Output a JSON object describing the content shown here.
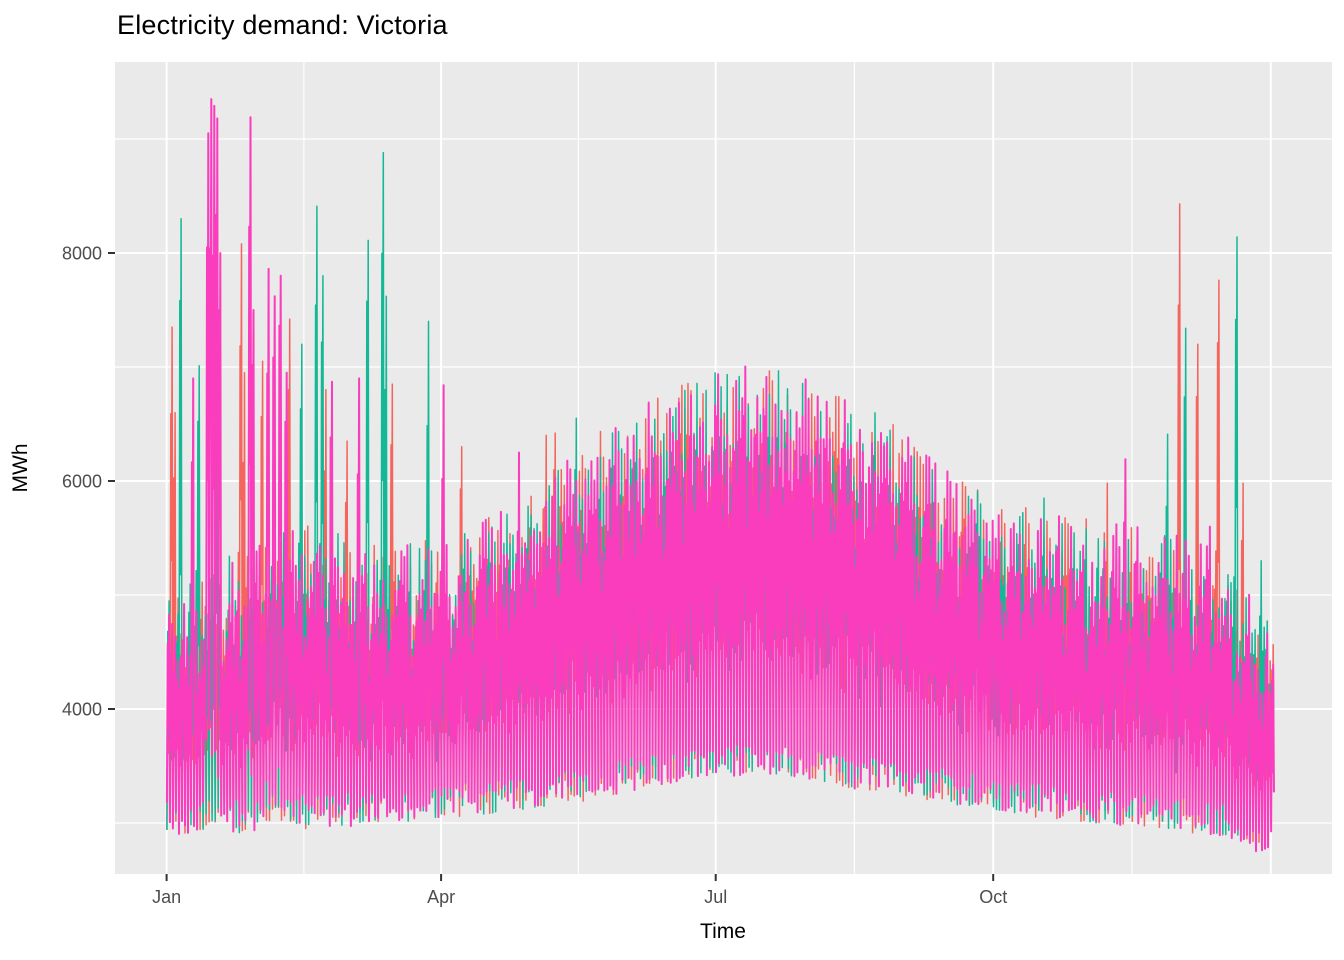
{
  "figure": {
    "title": "Electricity demand: Victoria"
  },
  "chart_data": {
    "type": "line",
    "title": "Electricity demand: Victoria",
    "xlabel": "Time",
    "ylabel": "MWh",
    "x_unit": "day-of-year (three years overlaid Jan–Dec)",
    "x_tick_labels": [
      "Jan",
      "Apr",
      "Jul",
      "Oct"
    ],
    "x_tick_days": [
      0,
      91,
      182,
      274
    ],
    "x_gridlines_major_days": [
      0,
      91,
      182,
      274,
      366
    ],
    "x_gridlines_minor_days": [
      45.5,
      136.5,
      228,
      320
    ],
    "y_tick_values": [
      4000,
      6000,
      8000
    ],
    "y_gridlines_minor": [
      3000,
      5000,
      7000,
      9000
    ],
    "x_domain_days": [
      -17.1,
      386.3
    ],
    "y_domain_mwh": [
      2553,
      9675
    ],
    "grid": true,
    "legend": "none",
    "panel_bg": "#EAEAEA",
    "gridline_color": "#FFFFFF",
    "tick_color": "#333333",
    "tick_label_color": "#4D4D4D",
    "axis_title_color": "#000000",
    "envelope": {
      "comment": "half-hourly demand summarized as daily night-low / day-high (MWh), linearly interpolated",
      "days": [
        0,
        10,
        21,
        32,
        46,
        60,
        75,
        91,
        105,
        121,
        135,
        152,
        166,
        182,
        196,
        213,
        227,
        244,
        258,
        274,
        288,
        305,
        319,
        335,
        349,
        356,
        361,
        366
      ],
      "night_low": [
        3050,
        3050,
        3050,
        3080,
        3100,
        3120,
        3150,
        3180,
        3220,
        3280,
        3320,
        3420,
        3500,
        3550,
        3580,
        3520,
        3450,
        3380,
        3330,
        3250,
        3200,
        3150,
        3120,
        3080,
        3030,
        2980,
        2900,
        2920
      ],
      "day_high": [
        4600,
        4900,
        5000,
        5150,
        5250,
        5150,
        5050,
        5150,
        5300,
        5600,
        5950,
        6250,
        6450,
        6600,
        6650,
        6500,
        6350,
        6050,
        5750,
        5500,
        5350,
        5300,
        5250,
        5150,
        5000,
        4750,
        4450,
        4500
      ]
    },
    "series": [
      {
        "name": "series-salmon",
        "color": "#F5655D",
        "weekly_offset": 0,
        "spikes": [
          [
            1,
            7350
          ],
          [
            2,
            6600
          ],
          [
            24,
            8080
          ],
          [
            25,
            6950
          ],
          [
            31,
            7050
          ],
          [
            40,
            7420
          ],
          [
            52,
            6800
          ],
          [
            59,
            6350
          ],
          [
            74,
            6850
          ],
          [
            97,
            6300
          ],
          [
            125,
            6400
          ],
          [
            128,
            6420
          ],
          [
            243,
            6360
          ],
          [
            253,
            6100
          ],
          [
            264,
            5950
          ],
          [
            311,
            5980
          ],
          [
            335,
            8430
          ],
          [
            341,
            7200
          ],
          [
            348,
            7760
          ],
          [
            356,
            5980
          ]
        ]
      },
      {
        "name": "series-teal",
        "color": "#14B897",
        "weekly_offset": 2,
        "spikes": [
          [
            4,
            8300
          ],
          [
            10,
            7010
          ],
          [
            16,
            6950
          ],
          [
            44,
            7200
          ],
          [
            49,
            8410
          ],
          [
            51,
            7800
          ],
          [
            66,
            8110
          ],
          [
            71,
            8880
          ],
          [
            72,
            7620
          ],
          [
            86,
            7400
          ],
          [
            135,
            6550
          ],
          [
            290,
            5850
          ],
          [
            331,
            6410
          ],
          [
            337,
            7340
          ],
          [
            354,
            8140
          ],
          [
            362,
            5300
          ]
        ]
      },
      {
        "name": "series-magenta",
        "color": "#F93DBC",
        "weekly_offset": 3,
        "spikes": [
          [
            8,
            6900
          ],
          [
            13,
            9050
          ],
          [
            14,
            9350
          ],
          [
            15,
            9290
          ],
          [
            16,
            9180
          ],
          [
            17,
            8000
          ],
          [
            27,
            9190
          ],
          [
            28,
            7500
          ],
          [
            33,
            7860
          ],
          [
            35,
            7620
          ],
          [
            37,
            7800
          ],
          [
            39,
            6950
          ],
          [
            54,
            6870
          ],
          [
            63,
            6900
          ],
          [
            91,
            6840
          ],
          [
            116,
            6250
          ],
          [
            317,
            6190
          ],
          [
            345,
            5600
          ]
        ]
      }
    ]
  }
}
